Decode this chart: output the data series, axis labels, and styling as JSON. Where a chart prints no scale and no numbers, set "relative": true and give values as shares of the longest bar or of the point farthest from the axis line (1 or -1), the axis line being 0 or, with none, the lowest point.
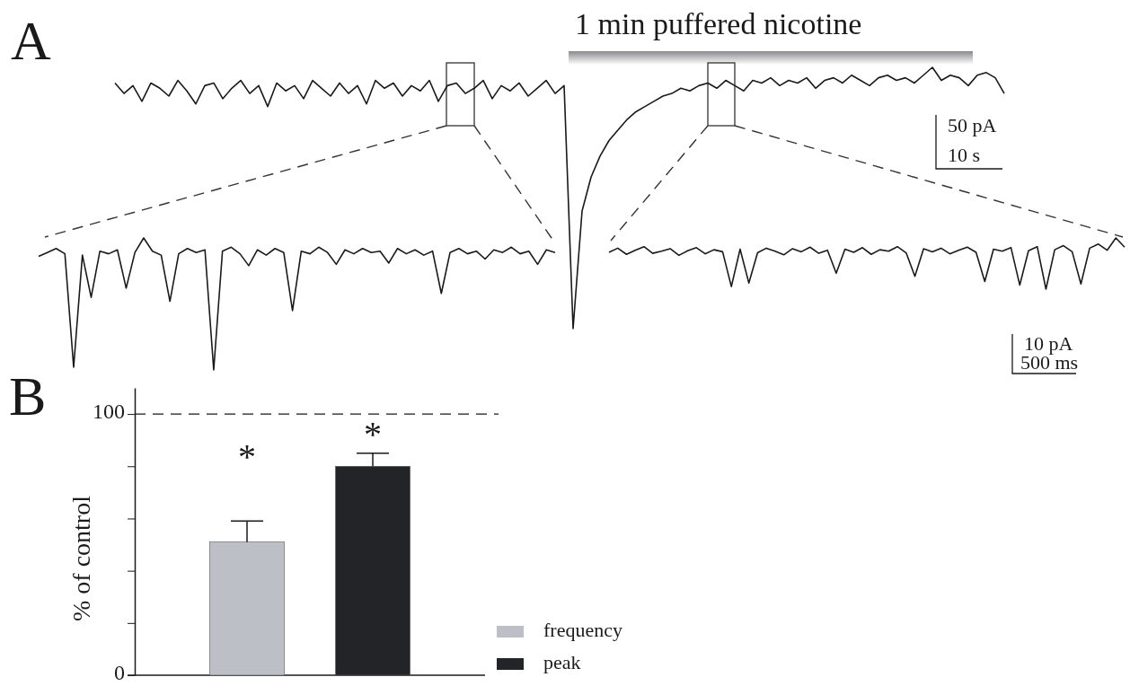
{
  "chart_data": [
    {
      "type": "line",
      "title": "A",
      "relative": true,
      "categories": [
        null,
        null,
        null,
        null,
        null,
        null,
        null,
        null,
        null,
        null,
        null,
        null,
        null,
        null,
        null,
        null,
        null,
        null,
        null,
        null,
        null,
        null,
        null,
        null,
        null,
        null,
        null,
        null,
        null,
        null,
        null,
        null,
        null,
        null,
        null,
        null,
        null,
        null,
        null,
        null,
        null,
        null,
        null,
        null,
        null,
        null,
        null,
        null,
        null,
        null,
        null,
        null,
        null,
        null,
        null,
        null,
        null,
        null,
        null,
        null,
        null,
        null,
        null,
        null,
        null,
        null,
        null,
        null,
        null,
        null,
        null,
        null,
        null,
        null,
        null,
        null,
        null,
        null,
        null,
        null,
        null,
        null,
        null,
        null,
        null,
        null,
        null,
        null,
        null,
        null,
        null,
        null,
        null,
        null,
        null,
        null,
        null,
        null,
        null,
        null
      ],
      "series": [
        {
          "color": "#1a1a1a",
          "values": [
            0.94,
            0.9,
            0.93,
            0.87,
            0.94,
            0.92,
            0.89,
            0.95,
            0.91,
            0.86,
            0.93,
            0.94,
            0.88,
            0.92,
            0.95,
            0.9,
            0.93,
            0.85,
            0.94,
            0.91,
            0.93,
            0.88,
            0.95,
            0.92,
            0.89,
            0.94,
            0.9,
            0.93,
            0.86,
            0.95,
            0.92,
            0.94,
            0.89,
            0.93,
            0.91,
            0.95,
            0.87,
            0.93,
            0.94,
            0.9,
            0.92,
            0.95,
            0.88,
            0.93,
            0.91,
            0.94,
            0.89,
            0.92,
            0.95,
            0.9,
            0.93,
            0.0,
            0.45,
            0.58,
            0.66,
            0.72,
            0.76,
            0.8,
            0.83,
            0.85,
            0.87,
            0.89,
            0.9,
            0.92,
            0.91,
            0.93,
            0.94,
            0.92,
            0.95,
            0.93,
            0.91,
            0.95,
            0.94,
            0.96,
            0.93,
            0.95,
            0.94,
            0.96,
            0.92,
            0.95,
            0.96,
            0.94,
            0.97,
            0.95,
            0.93,
            0.96,
            0.97,
            0.95,
            0.96,
            0.94,
            0.97,
            1.0,
            0.95,
            0.97,
            0.96,
            0.93,
            0.97,
            0.98,
            0.96,
            0.9
          ]
        }
      ],
      "annotations": [
        "1 min puffered nicotine",
        "50 pA",
        "10 s"
      ]
    },
    {
      "type": "line",
      "relative": true,
      "categories": [
        null,
        null,
        null,
        null,
        null,
        null,
        null,
        null,
        null,
        null,
        null,
        null,
        null,
        null,
        null,
        null,
        null,
        null,
        null,
        null,
        null,
        null,
        null,
        null,
        null,
        null,
        null,
        null,
        null,
        null,
        null,
        null,
        null,
        null,
        null,
        null,
        null,
        null,
        null,
        null,
        null,
        null,
        null,
        null,
        null,
        null,
        null,
        null,
        null,
        null,
        null,
        null,
        null,
        null,
        null,
        null,
        null,
        null,
        null,
        null
      ],
      "series": [
        {
          "color": "#1a1a1a",
          "values": [
            0.86,
            0.89,
            0.92,
            0.88,
            0.02,
            0.87,
            0.55,
            0.9,
            0.88,
            0.91,
            0.62,
            0.89,
            1.0,
            0.9,
            0.87,
            0.52,
            0.88,
            0.92,
            0.89,
            0.91,
            0.0,
            0.9,
            0.93,
            0.88,
            0.79,
            0.91,
            0.87,
            0.92,
            0.89,
            0.45,
            0.9,
            0.88,
            0.93,
            0.89,
            0.8,
            0.91,
            0.88,
            0.92,
            0.89,
            0.9,
            0.81,
            0.92,
            0.88,
            0.91,
            0.87,
            0.9,
            0.58,
            0.89,
            0.92,
            0.88,
            0.9,
            0.84,
            0.91,
            0.89,
            0.93,
            0.88,
            0.9,
            0.8,
            0.91,
            0.89
          ]
        }
      ]
    },
    {
      "type": "line",
      "relative": true,
      "categories": [
        null,
        null,
        null,
        null,
        null,
        null,
        null,
        null,
        null,
        null,
        null,
        null,
        null,
        null,
        null,
        null,
        null,
        null,
        null,
        null,
        null,
        null,
        null,
        null,
        null,
        null,
        null,
        null,
        null,
        null,
        null,
        null,
        null,
        null,
        null,
        null,
        null,
        null,
        null,
        null,
        null,
        null,
        null,
        null,
        null,
        null,
        null,
        null,
        null,
        null,
        null,
        null,
        null,
        null,
        null,
        null,
        null,
        null,
        null,
        null
      ],
      "series": [
        {
          "color": "#1a1a1a",
          "values": [
            0.72,
            0.8,
            0.68,
            0.76,
            0.83,
            0.7,
            0.74,
            0.79,
            0.66,
            0.75,
            0.81,
            0.69,
            0.77,
            0.73,
            0.05,
            0.78,
            0.12,
            0.71,
            0.8,
            0.74,
            0.67,
            0.79,
            0.73,
            0.82,
            0.7,
            0.76,
            0.31,
            0.78,
            0.72,
            0.81,
            0.68,
            0.77,
            0.74,
            0.83,
            0.71,
            0.25,
            0.79,
            0.73,
            0.8,
            0.69,
            0.76,
            0.82,
            0.72,
            0.15,
            0.78,
            0.74,
            0.81,
            0.08,
            0.75,
            0.83,
            0.0,
            0.77,
            0.85,
            0.73,
            0.1,
            0.8,
            0.88,
            0.76,
            1.0,
            0.82
          ]
        }
      ],
      "annotations": [
        "10 pA",
        "500 ms"
      ]
    },
    {
      "type": "bar",
      "title": "B",
      "ylabel": "% of control",
      "categories": [
        null
      ],
      "series": [
        {
          "name": "frequency",
          "color": "#bcbfc6",
          "values": [
            51
          ],
          "errors": [
            8
          ]
        },
        {
          "name": "peak",
          "color": "#222427",
          "values": [
            80
          ],
          "errors": [
            5
          ]
        }
      ],
      "ylim": [
        0,
        110
      ],
      "yticks": [
        0,
        {
          "value": 20,
          "label": null
        },
        {
          "value": 40,
          "label": null
        },
        {
          "value": 60,
          "label": null
        },
        {
          "value": 80,
          "label": null
        },
        100
      ],
      "ref_lines": [
        {
          "axis": "y",
          "value": 100,
          "line_style": "dashed"
        }
      ],
      "legend": "bottom right",
      "annotations": [
        "*",
        "*"
      ]
    }
  ]
}
